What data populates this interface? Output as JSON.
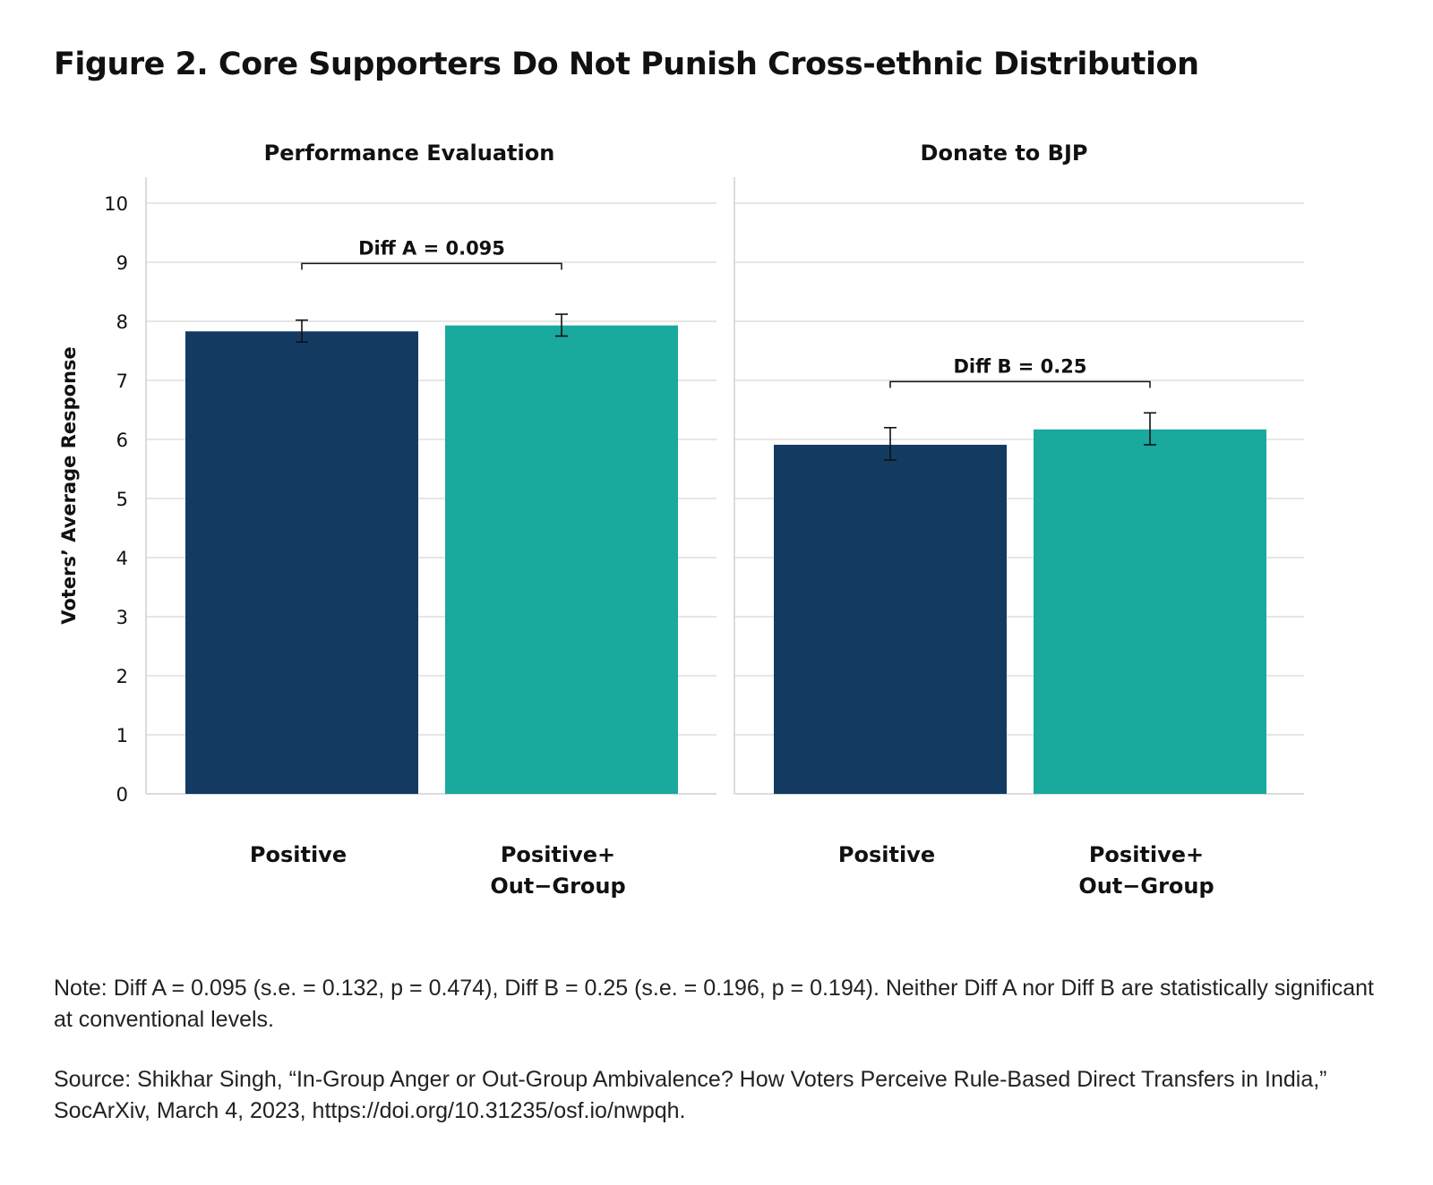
{
  "title": "Figure 2. Core Supporters Do Not Punish Cross-ethnic Distribution",
  "note": "Note: Diff A = 0.095 (s.e. = 0.132, p = 0.474), Diff B = 0.25 (s.e. = 0.196, p = 0.194). Neither Diff A nor Diff B are statistically significant at conventional levels.",
  "source": "Source: Shikhar Singh, “In-Group Anger or Out-Group Ambivalence? How Voters Perceive Rule-Based Direct Transfers in India,” SocArXiv, March 4, 2023, https://doi.org/10.31235/osf.io/nwpqh.",
  "colors": {
    "positive": "#133b62",
    "positive_outgroup": "#19a99d",
    "grid": "#dedede",
    "axis": "#d0d0d0",
    "text": "#111111"
  },
  "chart_data": [
    {
      "type": "bar",
      "title": "Performance Evaluation",
      "ylabel": "Voters’ Average Response",
      "ylim": [
        0,
        10
      ],
      "yticks": [
        0,
        1,
        2,
        3,
        4,
        5,
        6,
        7,
        8,
        9,
        10
      ],
      "grid": true,
      "categories": [
        "Positive",
        "Positive+\nOut−Group"
      ],
      "values": [
        7.83,
        7.93
      ],
      "error_bars": [
        [
          7.65,
          8.02
        ],
        [
          7.75,
          8.12
        ]
      ],
      "bracket": {
        "label": "Diff A = 0.095",
        "y": 8.98
      }
    },
    {
      "type": "bar",
      "title": "Donate to BJP",
      "ylim": [
        0,
        10
      ],
      "yticks": [
        0,
        1,
        2,
        3,
        4,
        5,
        6,
        7,
        8,
        9,
        10
      ],
      "grid": true,
      "categories": [
        "Positive",
        "Positive+\nOut−Group"
      ],
      "values": [
        5.91,
        6.17
      ],
      "error_bars": [
        [
          5.65,
          6.2
        ],
        [
          5.91,
          6.45
        ]
      ],
      "bracket": {
        "label": "Diff B = 0.25",
        "y": 6.98
      }
    }
  ]
}
